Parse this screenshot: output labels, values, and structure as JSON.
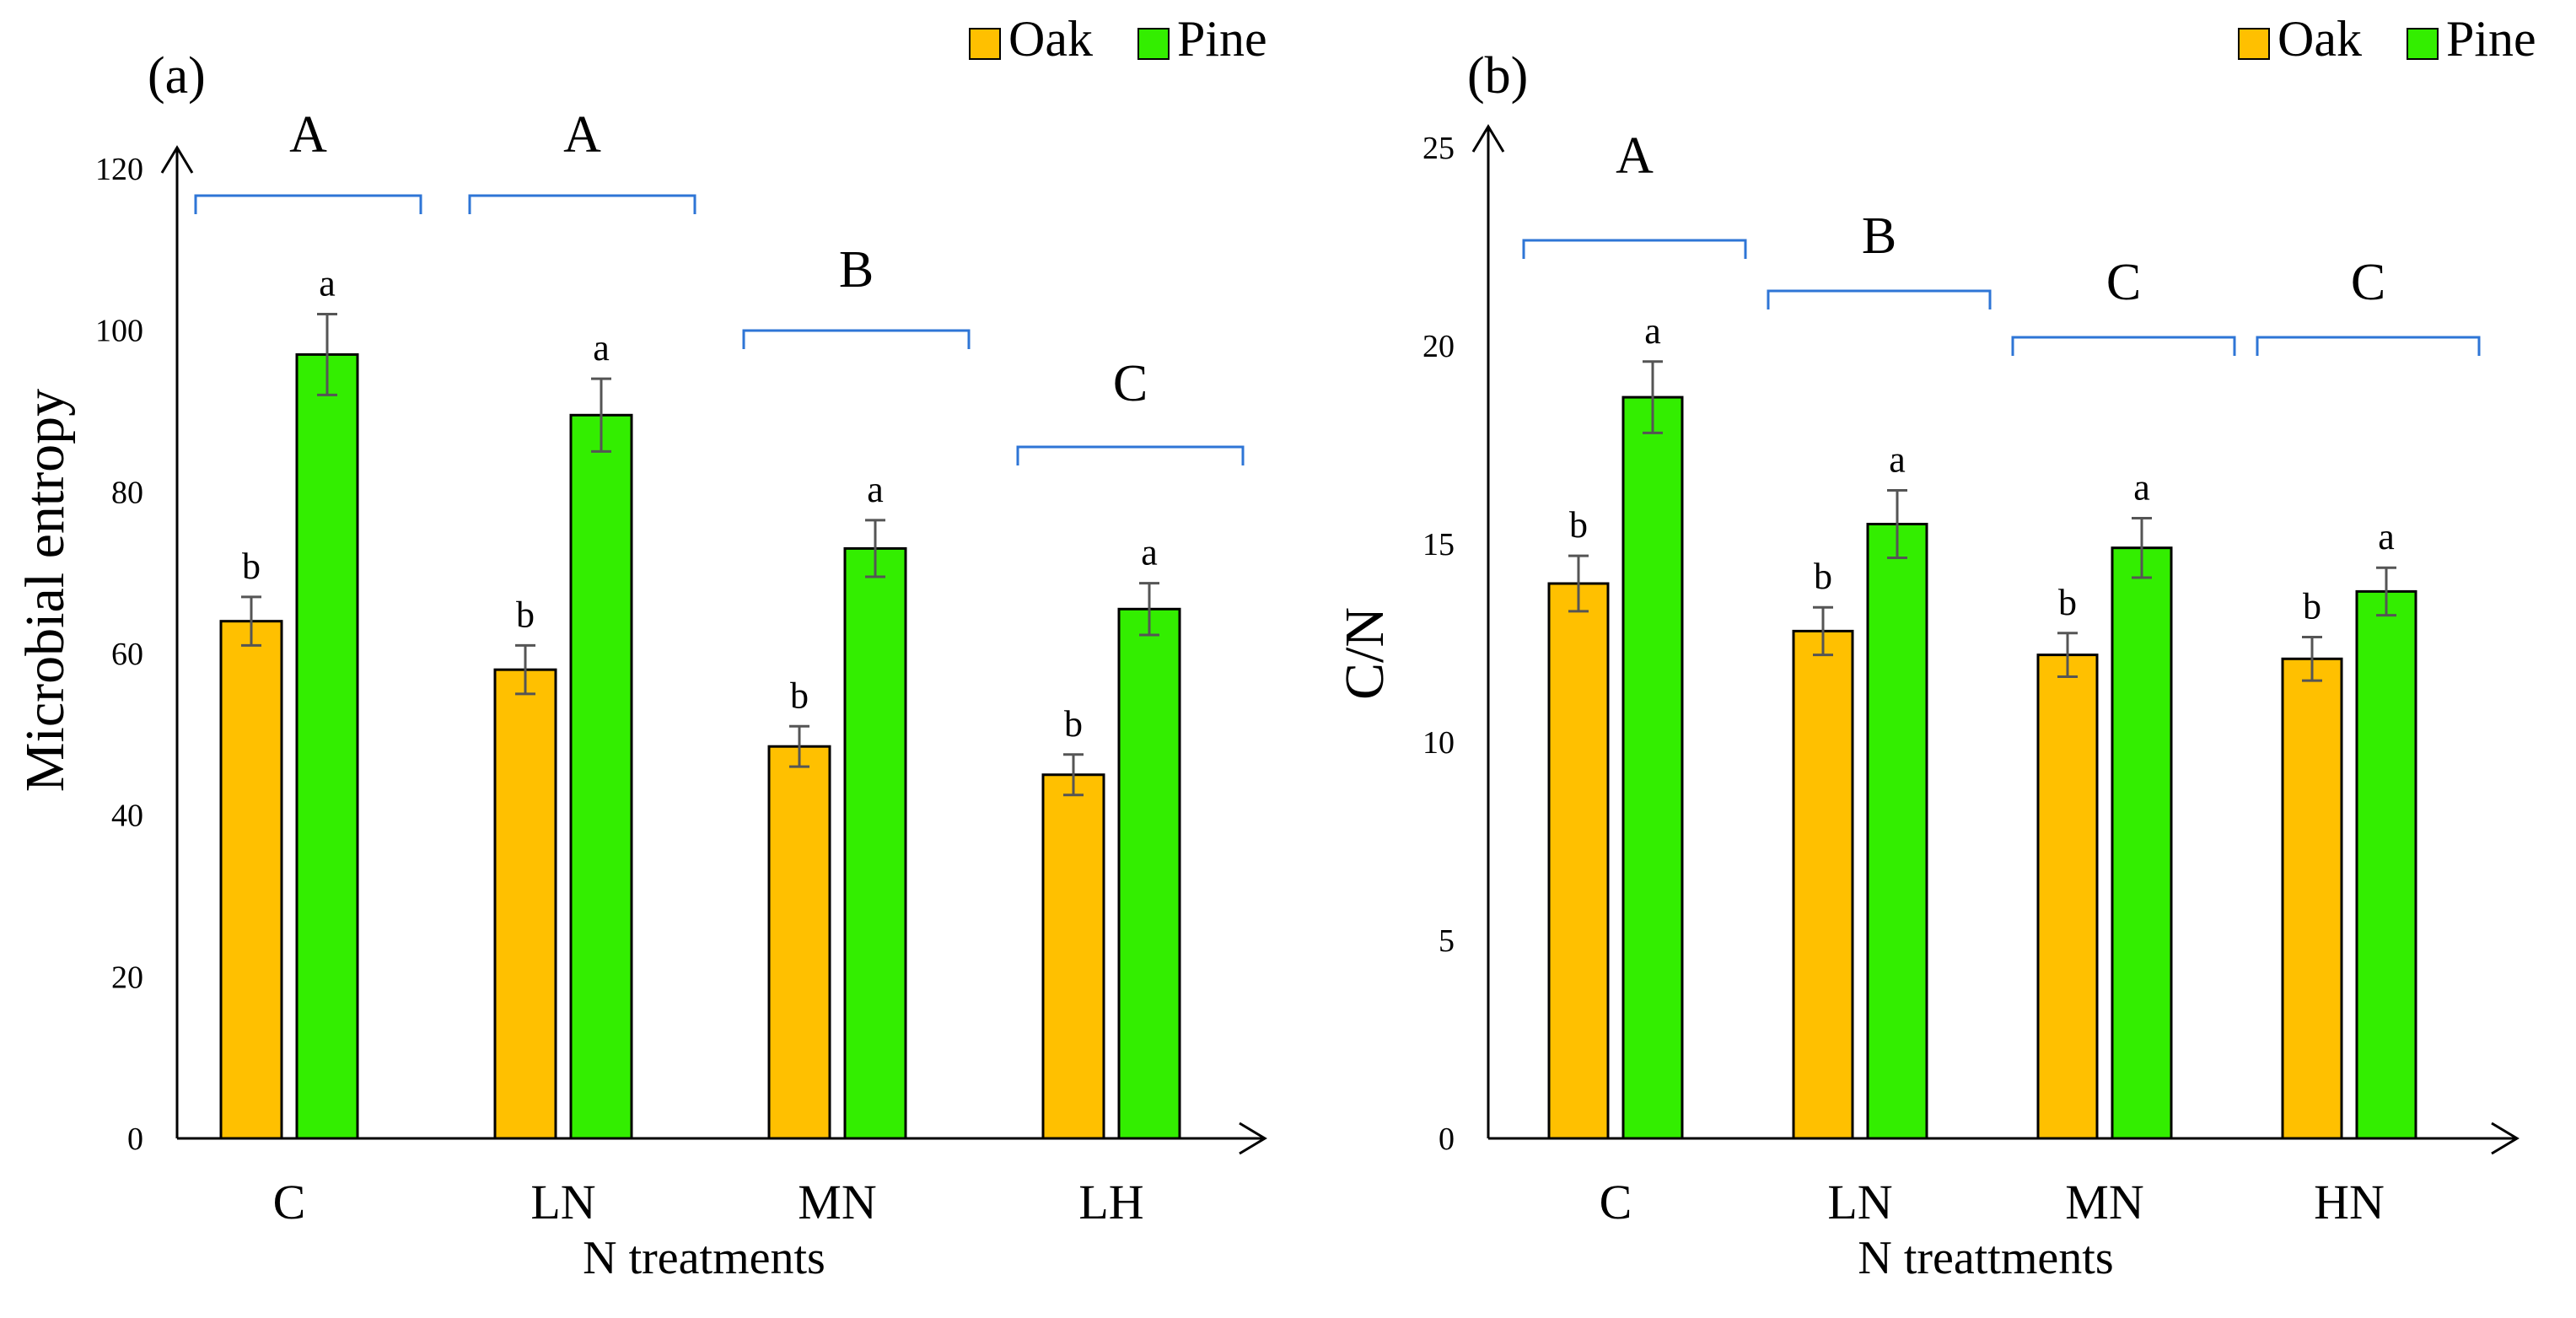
{
  "chart_data": [
    {
      "type": "bar",
      "panel_label": "(a)",
      "categories": [
        "C",
        "LN",
        "MN",
        "LH"
      ],
      "series": [
        {
          "name": "Oak",
          "color": "#FFC000",
          "values": [
            64,
            58,
            48.5,
            45
          ],
          "errors": [
            3,
            3,
            2.5,
            2.5
          ],
          "letters": [
            "b",
            "b",
            "b",
            "b"
          ]
        },
        {
          "name": "Pine",
          "color": "#33EE00",
          "values": [
            97,
            89.5,
            73,
            65.5
          ],
          "errors": [
            5,
            4.5,
            3.5,
            3.2
          ],
          "letters": [
            "a",
            "a",
            "a",
            "a"
          ]
        }
      ],
      "group_letters": [
        "A",
        "A",
        "B",
        "C"
      ],
      "ylabel": "Microbial entropy",
      "xlabel": "N treatments",
      "ylim": [
        0,
        120
      ],
      "yticks": [
        "0",
        "20",
        "40",
        "60",
        "80",
        "100",
        "120"
      ],
      "legend": "top-right"
    },
    {
      "type": "bar",
      "panel_label": "(b)",
      "categories": [
        "C",
        "LN",
        "MN",
        "HN"
      ],
      "series": [
        {
          "name": "Oak",
          "color": "#FFC000",
          "values": [
            14,
            12.8,
            12.2,
            12.1
          ],
          "errors": [
            0.7,
            0.6,
            0.55,
            0.55
          ],
          "letters": [
            "b",
            "b",
            "b",
            "b"
          ]
        },
        {
          "name": "Pine",
          "color": "#33EE00",
          "values": [
            18.7,
            15.5,
            14.9,
            13.8
          ],
          "errors": [
            0.9,
            0.85,
            0.75,
            0.6
          ],
          "letters": [
            "a",
            "a",
            "a",
            "a"
          ]
        }
      ],
      "group_letters": [
        "A",
        "B",
        "C",
        "C"
      ],
      "ylabel": "C/N",
      "xlabel": "N treattments",
      "ylim": [
        0,
        25
      ],
      "yticks": [
        "0",
        "5",
        "10",
        "15",
        "20",
        "25"
      ],
      "legend": "top-right"
    }
  ]
}
